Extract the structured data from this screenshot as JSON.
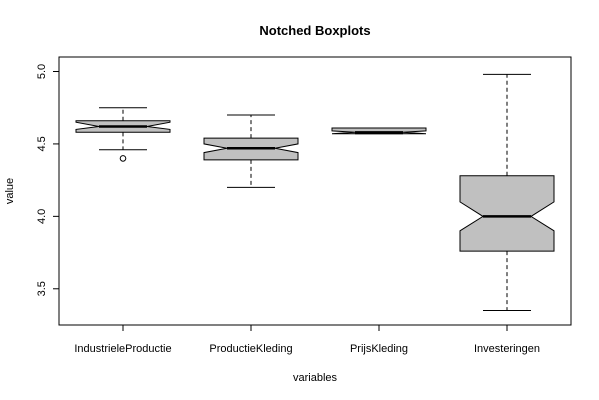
{
  "chart_data": {
    "type": "boxplot",
    "variant": "notched",
    "title": "Notched Boxplots",
    "xlabel": "variables",
    "ylabel": "value",
    "ylim": [
      3.25,
      5.1
    ],
    "yticks": [
      "3.5",
      "4.0",
      "4.5",
      "5.0"
    ],
    "box_fill": "#c0c0c0",
    "grid": false,
    "categories": [
      "IndustrieleProductie",
      "ProductieKleding",
      "PrijsKleding",
      "Investeringen"
    ],
    "boxes": [
      {
        "name": "IndustrieleProductie",
        "whisker_low": 4.46,
        "q1": 4.58,
        "median": 4.62,
        "q3": 4.66,
        "whisker_high": 4.75,
        "notch_low": 4.6,
        "notch_high": 4.65,
        "outliers": [
          4.4
        ]
      },
      {
        "name": "ProductieKleding",
        "whisker_low": 4.2,
        "q1": 4.39,
        "median": 4.47,
        "q3": 4.54,
        "whisker_high": 4.7,
        "notch_low": 4.44,
        "notch_high": 4.5,
        "outliers": []
      },
      {
        "name": "PrijsKleding",
        "whisker_low": 4.57,
        "q1": 4.57,
        "median": 4.58,
        "q3": 4.61,
        "whisker_high": 4.61,
        "notch_low": 4.57,
        "notch_high": 4.59,
        "outliers": []
      },
      {
        "name": "Investeringen",
        "whisker_low": 3.35,
        "q1": 3.76,
        "median": 4.0,
        "q3": 4.28,
        "whisker_high": 4.98,
        "notch_low": 3.9,
        "notch_high": 4.1,
        "outliers": []
      }
    ]
  }
}
